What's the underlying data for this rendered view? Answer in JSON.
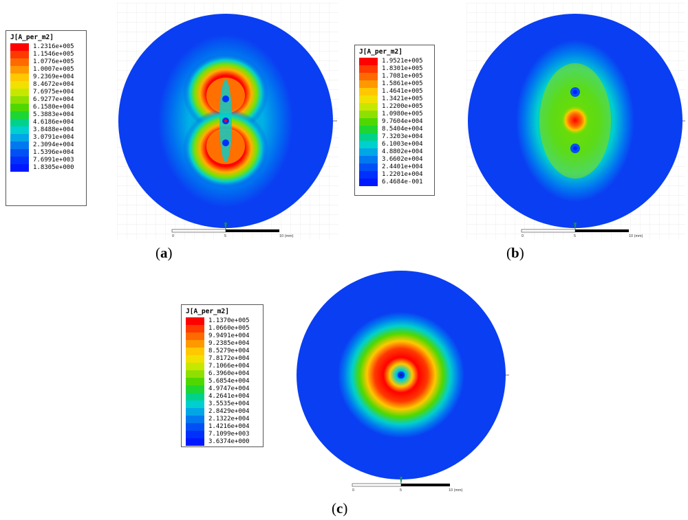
{
  "figures": [
    {
      "id": "a",
      "caption_letter": "a",
      "legend_title": "J[A_per_m2]",
      "legend_values": [
        "1.2316e+005",
        "1.1546e+005",
        "1.0776e+005",
        "1.0007e+005",
        "9.2369e+004",
        "8.4672e+004",
        "7.6975e+004",
        "6.9277e+004",
        "6.1580e+004",
        "5.3883e+004",
        "4.6186e+004",
        "3.8488e+004",
        "3.0791e+004",
        "2.3094e+004",
        "1.5396e+004",
        "7.6991e+003",
        "1.8305e+000"
      ],
      "scale": {
        "start": "0",
        "mid": "5",
        "end": "10 (mm)"
      }
    },
    {
      "id": "b",
      "caption_letter": "b",
      "legend_title": "J[A_per_m2]",
      "legend_values": [
        "1.9521e+005",
        "1.8301e+005",
        "1.7081e+005",
        "1.5861e+005",
        "1.4641e+005",
        "1.3421e+005",
        "1.2200e+005",
        "1.0980e+005",
        "9.7604e+004",
        "8.5404e+004",
        "7.3203e+004",
        "6.1003e+004",
        "4.8802e+004",
        "3.6602e+004",
        "2.4401e+004",
        "1.2201e+004",
        "6.4684e-001"
      ],
      "scale": {
        "start": "0",
        "mid": "5",
        "end": "10 (mm)"
      }
    },
    {
      "id": "c",
      "caption_letter": "c",
      "legend_title": "J[A_per_m2]",
      "legend_values": [
        "1.1370e+005",
        "1.0660e+005",
        "9.9491e+004",
        "9.2385e+004",
        "8.5279e+004",
        "7.8172e+004",
        "7.1066e+004",
        "6.3960e+004",
        "5.6854e+004",
        "4.9747e+004",
        "4.2641e+004",
        "3.5535e+004",
        "2.8429e+004",
        "2.1322e+004",
        "1.4216e+004",
        "7.1099e+003",
        "3.6374e+000"
      ],
      "scale": {
        "start": "0",
        "mid": "5",
        "end": "10 (mm)"
      }
    }
  ],
  "colors": {
    "scale": [
      "#ff0000",
      "#ff3a00",
      "#ff6a00",
      "#ff9900",
      "#ffc800",
      "#f2e000",
      "#c6e800",
      "#8fe000",
      "#4fd800",
      "#1ed632",
      "#00d28c",
      "#00cfcf",
      "#00a6e6",
      "#0078f0",
      "#0050f5",
      "#0030fb",
      "#0018ff"
    ],
    "field_background": "#0a3ef2"
  }
}
